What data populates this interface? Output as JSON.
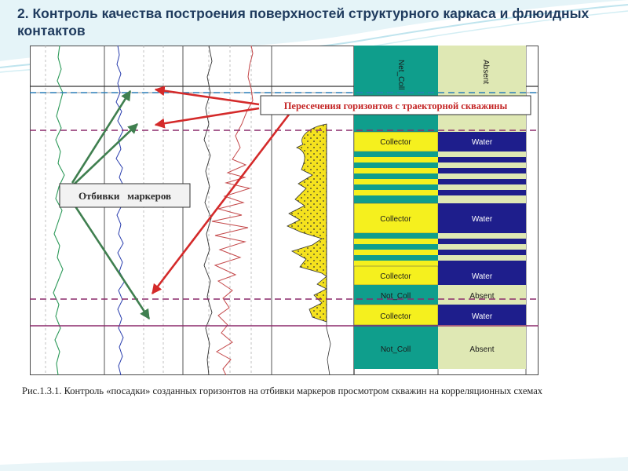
{
  "slide": {
    "title": "2. Контроль качества построения поверхностей структурного каркаса и флюидных контактов"
  },
  "figure": {
    "callout_intersections": "Пересечения горизонтов с траекторной скважины",
    "callout_markers": "Отбивки   маркеров",
    "column_headers": [
      "Net_Coll",
      "Absent"
    ],
    "lithology_rows": [
      {
        "left": "Collector",
        "right": "Water"
      },
      {
        "left": "Collector",
        "right": "Water"
      },
      {
        "left": "Collector",
        "right": "Water"
      },
      {
        "left": "Not_Coll",
        "right": "Absent"
      },
      {
        "left": "Collector",
        "right": "Water"
      },
      {
        "left": "Not_Coll",
        "right": "Absent"
      }
    ]
  },
  "caption": "Рис.1.3.1. Контроль «посадки» созданных горизонтов на отбивки маркеров просмотром скважин на корреляционных схемах",
  "colors": {
    "collector": "#f5f01e",
    "not_coll": "#0f9e8c",
    "water": "#1e1e8c",
    "absent": "#dfe8b4",
    "arrow_red": "#d42a2a",
    "arrow_green": "#3f7f4f",
    "horizon_dashed": "#2b7fb8",
    "horizon_purple": "#8c2a6b",
    "title": "#1f3b5e"
  }
}
